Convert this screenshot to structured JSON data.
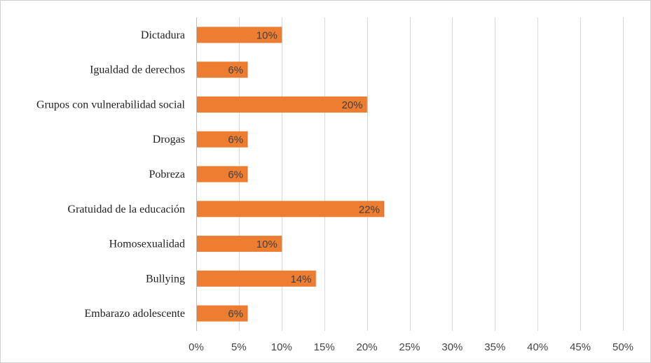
{
  "chart_data": {
    "type": "bar",
    "orientation": "horizontal",
    "title": "",
    "xlabel": "",
    "ylabel": "",
    "categories": [
      "Dictadura",
      "Igualdad de derechos",
      "Grupos con vulnerabilidad social",
      "Drogas",
      "Pobreza",
      "Gratuidad de la educación",
      "Homosexualidad",
      "Bullying",
      "Embarazo adolescente"
    ],
    "values": [
      10,
      6,
      20,
      6,
      6,
      22,
      10,
      14,
      6
    ],
    "data_labels": [
      "10%",
      "6%",
      "20%",
      "6%",
      "6%",
      "22%",
      "10%",
      "14%",
      "6%"
    ],
    "xlim": [
      0,
      50
    ],
    "xticks": [
      0,
      5,
      10,
      15,
      20,
      25,
      30,
      35,
      40,
      45,
      50
    ],
    "xtick_labels": [
      "0%",
      "5%",
      "10%",
      "15%",
      "20%",
      "25%",
      "30%",
      "35%",
      "40%",
      "45%",
      "50%"
    ],
    "grid": true,
    "legend": "none",
    "bar_color": "#ED7D31",
    "grid_color": "#D9D9D9",
    "label_color": "#404040"
  }
}
